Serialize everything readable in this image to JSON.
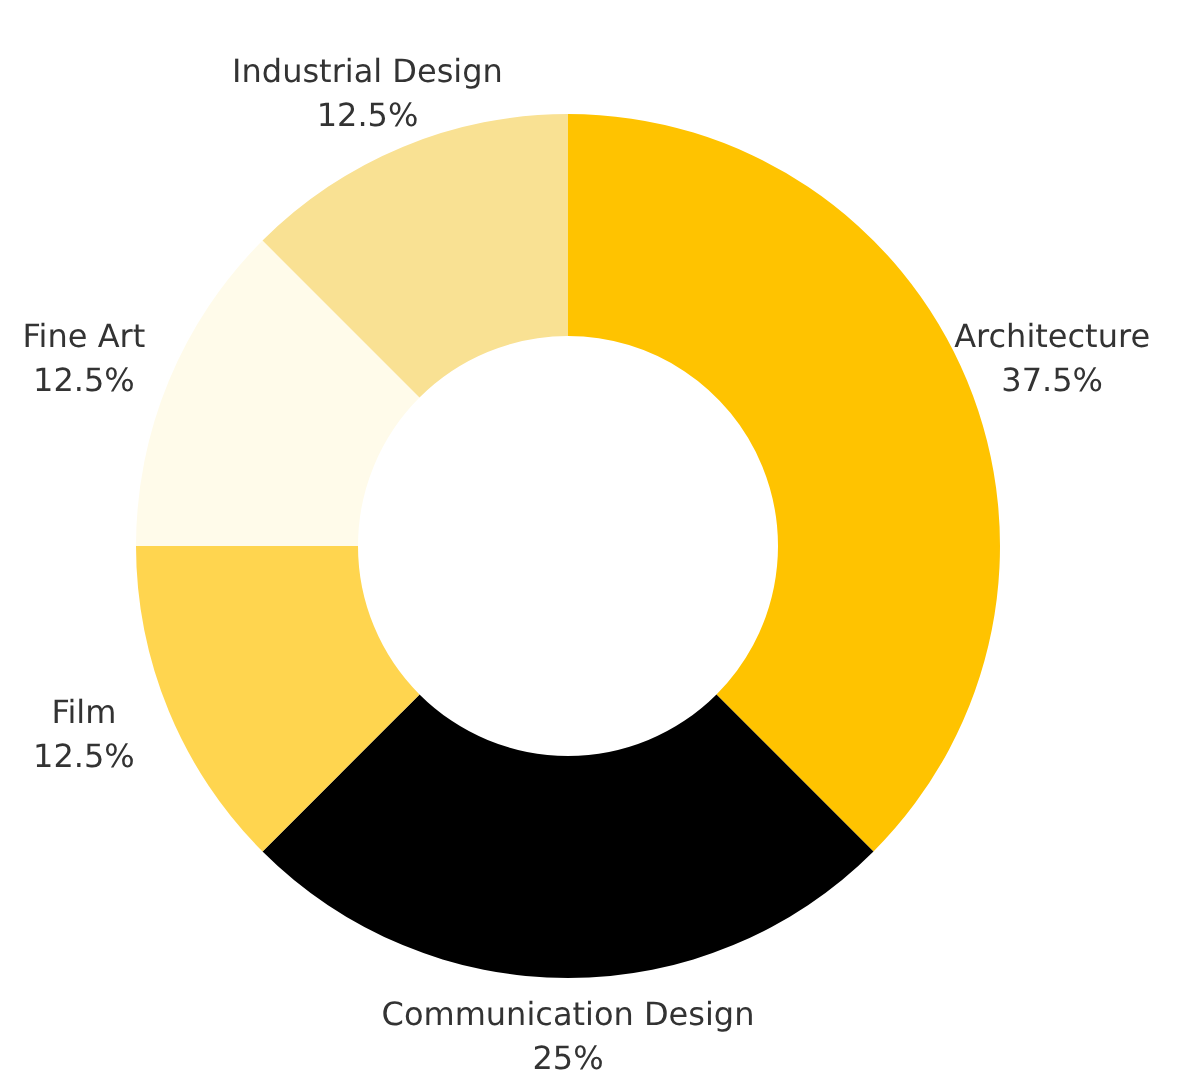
{
  "chart_data": {
    "type": "donut",
    "categories": [
      "Architecture",
      "Communication Design",
      "Film",
      "Fine Art",
      "Industrial Design"
    ],
    "values": [
      37.5,
      25,
      12.5,
      12.5,
      12.5
    ],
    "value_labels": [
      "37.5%",
      "25%",
      "12.5%",
      "12.5%",
      "12.5%"
    ],
    "colors": [
      "#ffc300",
      "#000000",
      "#ffd54f",
      "#fffbea",
      "#f9e193"
    ],
    "legend": false
  }
}
